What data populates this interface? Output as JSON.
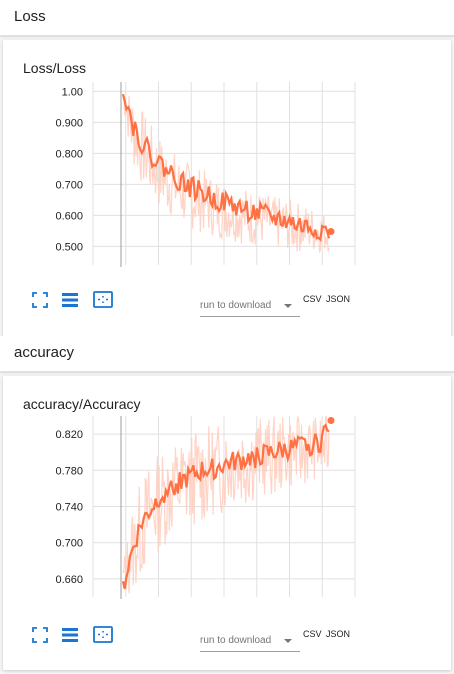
{
  "sections": [
    {
      "header": "Loss",
      "card_title": "Loss/Loss",
      "run_select_placeholder": "run to download",
      "csv_label": "CSV",
      "json_label": "JSON",
      "chart_data": {
        "type": "line",
        "title": "Loss/Loss",
        "xlabel": "",
        "ylabel": "",
        "ylim": [
          0.44,
          1.03
        ],
        "yticks": [
          1.0,
          0.9,
          0.8,
          0.7,
          0.6,
          0.5
        ],
        "ytick_labels": [
          "1.00",
          "0.900",
          "0.800",
          "0.700",
          "0.600",
          "0.500"
        ],
        "series": [
          {
            "color": "#ff7043",
            "smoothed": [
              1.02,
              0.9,
              0.84,
              0.8,
              0.77,
              0.745,
              0.72,
              0.7,
              0.685,
              0.67,
              0.655,
              0.645,
              0.635,
              0.625,
              0.615,
              0.605,
              0.6,
              0.59,
              0.585,
              0.575,
              0.565,
              0.56,
              0.555,
              0.548
            ],
            "raw_high": [
              1.02,
              1.0,
              0.95,
              0.9,
              0.86,
              0.83,
              0.8,
              0.78,
              0.76,
              0.75,
              0.73,
              0.72,
              0.7,
              0.7,
              0.69,
              0.68,
              0.67,
              0.66,
              0.66,
              0.65,
              0.64,
              0.63,
              0.62,
              0.6
            ],
            "raw_low": [
              0.95,
              0.76,
              0.7,
              0.66,
              0.62,
              0.6,
              0.58,
              0.56,
              0.55,
              0.54,
              0.53,
              0.52,
              0.52,
              0.51,
              0.5,
              0.5,
              0.5,
              0.49,
              0.49,
              0.48,
              0.48,
              0.48,
              0.48,
              0.48
            ]
          }
        ],
        "grid": true
      }
    },
    {
      "header": "accuracy",
      "card_title": "accuracy/Accuracy",
      "run_select_placeholder": "run to download",
      "csv_label": "CSV",
      "json_label": "JSON",
      "chart_data": {
        "type": "line",
        "title": "accuracy/Accuracy",
        "xlabel": "",
        "ylabel": "",
        "ylim": [
          0.64,
          0.84
        ],
        "yticks": [
          0.82,
          0.78,
          0.74,
          0.7,
          0.66
        ],
        "ytick_labels": [
          "0.820",
          "0.780",
          "0.740",
          "0.700",
          "0.660"
        ],
        "series": [
          {
            "color": "#ff7043",
            "smoothed": [
              0.65,
              0.69,
              0.72,
              0.735,
              0.75,
              0.76,
              0.765,
              0.77,
              0.775,
              0.78,
              0.782,
              0.785,
              0.788,
              0.79,
              0.793,
              0.795,
              0.797,
              0.8,
              0.802,
              0.804,
              0.806,
              0.808,
              0.81,
              0.835
            ],
            "raw_high": [
              0.68,
              0.74,
              0.77,
              0.79,
              0.8,
              0.81,
              0.815,
              0.82,
              0.825,
              0.83,
              0.83,
              0.835,
              0.835,
              0.84,
              0.84,
              0.84,
              0.84,
              0.84,
              0.84,
              0.84,
              0.84,
              0.84,
              0.84,
              0.84
            ],
            "raw_low": [
              0.64,
              0.64,
              0.66,
              0.68,
              0.69,
              0.7,
              0.71,
              0.71,
              0.72,
              0.72,
              0.73,
              0.73,
              0.74,
              0.74,
              0.74,
              0.75,
              0.75,
              0.75,
              0.76,
              0.76,
              0.76,
              0.77,
              0.77,
              0.77
            ]
          }
        ],
        "grid": true
      }
    }
  ],
  "icons": {
    "fullscreen": "fullscreen-icon",
    "data_list": "list-icon",
    "fit_domain": "fit-domain-icon"
  },
  "colors": {
    "accent": "#ff7043",
    "accent_light": "#ffccbc",
    "icon_blue": "#1976d2",
    "grid": "#e0e0e0"
  }
}
